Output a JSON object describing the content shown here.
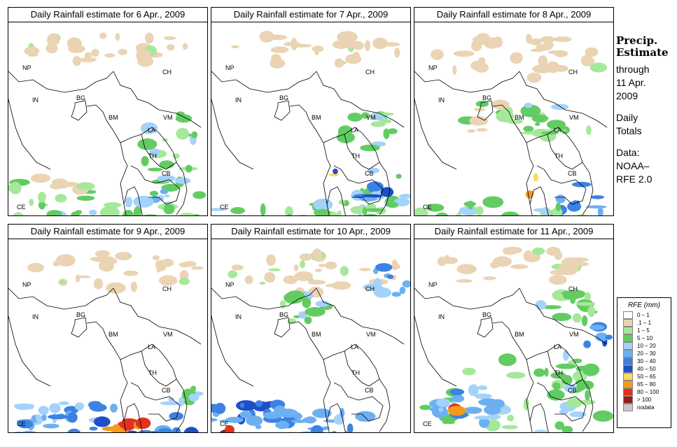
{
  "panels": [
    {
      "title": "Daily Rainfall estimate for  6 Apr., 2009"
    },
    {
      "title": "Daily Rainfall estimate for  7 Apr., 2009"
    },
    {
      "title": "Daily Rainfall estimate for  8 Apr., 2009"
    },
    {
      "title": "Daily Rainfall estimate for  9 Apr., 2009"
    },
    {
      "title": "Daily Rainfall estimate for  10 Apr., 2009"
    },
    {
      "title": "Daily Rainfall estimate for  11 Apr., 2009"
    }
  ],
  "country_labels": [
    "NP",
    "CH",
    "IN",
    "BG",
    "BM",
    "VM",
    "LA",
    "TH",
    "CB",
    "CE"
  ],
  "side": {
    "heading_line1": "Precip.",
    "heading_line2": "Estimate",
    "through_label": "through",
    "end_date_line1": "11 Apr.",
    "end_date_line2": "2009",
    "totals_line1": "Daily",
    "totals_line2": "Totals",
    "source_line1": "Data:",
    "source_line2": "NOAA–",
    "source_line3": "RFE 2.0"
  },
  "legend": {
    "title": "RFE (mm)",
    "items": [
      {
        "label": "0 – 1",
        "color": "#ffffff"
      },
      {
        "label": ".1 – 1",
        "color": "#ead4b4"
      },
      {
        "label": "1 – 5",
        "color": "#a6e89a"
      },
      {
        "label": "5 – 10",
        "color": "#62cc62"
      },
      {
        "label": "10 – 20",
        "color": "#a4d2fa"
      },
      {
        "label": "20 – 30",
        "color": "#6cb0f2"
      },
      {
        "label": "30 – 40",
        "color": "#3c82e2"
      },
      {
        "label": "40 – 50",
        "color": "#1e4ec8"
      },
      {
        "label": "50 – 65",
        "color": "#fadc5a"
      },
      {
        "label": "65 – 80",
        "color": "#f59a1e"
      },
      {
        "label": "80 – 100",
        "color": "#e1321e"
      },
      {
        "label": "> 100",
        "color": "#961e14"
      },
      {
        "label": "nodata",
        "color": "#c8c8c8"
      }
    ]
  }
}
